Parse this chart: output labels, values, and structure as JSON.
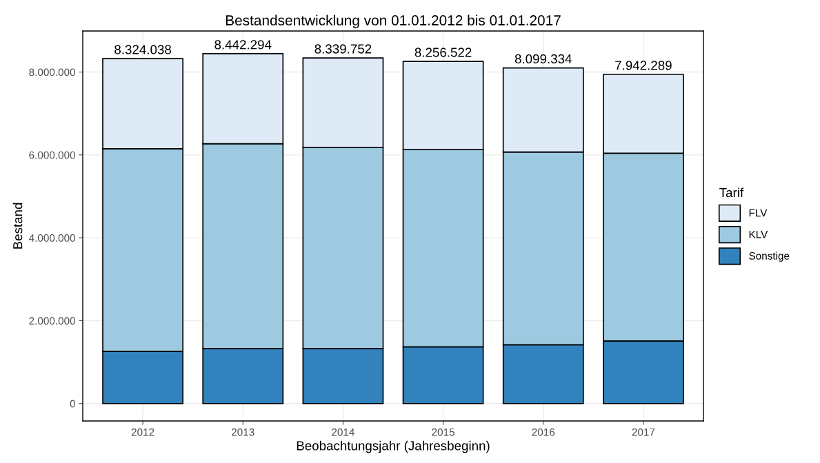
{
  "chart_data": {
    "type": "bar",
    "stacked": true,
    "title": "Bestandsentwicklung von 01.01.2012 bis 01.01.2017",
    "xlabel": "Beobachtungsjahr (Jahresbeginn)",
    "ylabel": "Bestand",
    "legend_title": "Tarif",
    "categories": [
      "2012",
      "2013",
      "2014",
      "2015",
      "2016",
      "2017"
    ],
    "series": [
      {
        "name": "Sonstige",
        "color": "#3182bd",
        "values": [
          1260000,
          1330000,
          1330000,
          1370000,
          1420000,
          1510000
        ]
      },
      {
        "name": "KLV",
        "color": "#9ecae1",
        "values": [
          4890000,
          4940000,
          4850000,
          4760000,
          4650000,
          4530000
        ]
      },
      {
        "name": "FLV",
        "color": "#deebf7",
        "values": [
          2174038,
          2172294,
          2159752,
          2126522,
          2029334,
          1902289
        ]
      }
    ],
    "totals": [
      "8.324.038",
      "8.442.294",
      "8.339.752",
      "8.256.522",
      "8.099.334",
      "7.942.289"
    ],
    "ylim": [
      -420000,
      8990000
    ],
    "yticks": [
      {
        "value": 0,
        "label": "0"
      },
      {
        "value": 2000000,
        "label": "2.000.000"
      },
      {
        "value": 4000000,
        "label": "4.000.000"
      },
      {
        "value": 6000000,
        "label": "6.000.000"
      },
      {
        "value": 8000000,
        "label": "8.000.000"
      }
    ],
    "grid": true,
    "legend": "right"
  }
}
